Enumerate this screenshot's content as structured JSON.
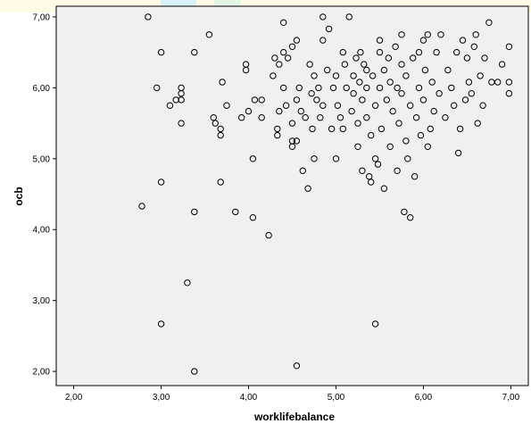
{
  "chart_data": {
    "type": "scatter",
    "title": "",
    "xlabel": "worklifebalance",
    "ylabel": "ocb",
    "xlim": [
      1.8,
      7.2
    ],
    "ylim": [
      1.8,
      7.15
    ],
    "xticks": [
      2.0,
      3.0,
      4.0,
      5.0,
      6.0,
      7.0
    ],
    "xtick_labels": [
      "2,00",
      "3,00",
      "4,00",
      "5,00",
      "6,00",
      "7,00"
    ],
    "yticks": [
      2.0,
      3.0,
      4.0,
      5.0,
      6.0,
      7.0
    ],
    "ytick_labels": [
      "2,00",
      "3,00",
      "4,00",
      "5,00",
      "6,00",
      "7,00"
    ],
    "grid": false,
    "colors": {
      "plot_bg": "#f0f0f0",
      "marker_stroke": "#000000",
      "marker_fill": "none"
    },
    "points": [
      [
        2.78,
        4.33
      ],
      [
        2.85,
        7.0
      ],
      [
        2.95,
        6.0
      ],
      [
        3.0,
        6.5
      ],
      [
        3.0,
        4.67
      ],
      [
        3.0,
        2.67
      ],
      [
        3.1,
        5.75
      ],
      [
        3.17,
        5.83
      ],
      [
        3.23,
        6.0
      ],
      [
        3.23,
        5.92
      ],
      [
        3.23,
        5.83
      ],
      [
        3.23,
        5.5
      ],
      [
        3.3,
        3.25
      ],
      [
        3.38,
        6.5
      ],
      [
        3.38,
        4.25
      ],
      [
        3.38,
        2.0
      ],
      [
        3.55,
        6.75
      ],
      [
        3.6,
        5.58
      ],
      [
        3.62,
        5.5
      ],
      [
        3.68,
        5.42
      ],
      [
        3.68,
        5.33
      ],
      [
        3.68,
        4.67
      ],
      [
        3.7,
        6.08
      ],
      [
        3.75,
        5.75
      ],
      [
        3.85,
        4.25
      ],
      [
        3.92,
        5.58
      ],
      [
        3.97,
        6.33
      ],
      [
        3.97,
        6.25
      ],
      [
        4.0,
        5.67
      ],
      [
        4.05,
        5.0
      ],
      [
        4.05,
        4.17
      ],
      [
        4.07,
        5.83
      ],
      [
        4.15,
        5.58
      ],
      [
        4.15,
        5.83
      ],
      [
        4.23,
        3.92
      ],
      [
        4.28,
        6.17
      ],
      [
        4.3,
        6.42
      ],
      [
        4.33,
        5.42
      ],
      [
        4.33,
        5.33
      ],
      [
        4.35,
        5.67
      ],
      [
        4.35,
        6.33
      ],
      [
        4.4,
        6.5
      ],
      [
        4.4,
        6.92
      ],
      [
        4.4,
        6.0
      ],
      [
        4.43,
        5.75
      ],
      [
        4.45,
        6.42
      ],
      [
        4.5,
        5.5
      ],
      [
        4.5,
        5.25
      ],
      [
        4.5,
        5.17
      ],
      [
        4.5,
        6.58
      ],
      [
        4.55,
        6.67
      ],
      [
        4.55,
        5.83
      ],
      [
        4.55,
        5.25
      ],
      [
        4.55,
        2.08
      ],
      [
        4.58,
        6.0
      ],
      [
        4.6,
        5.67
      ],
      [
        4.62,
        4.83
      ],
      [
        4.65,
        5.58
      ],
      [
        4.68,
        4.58
      ],
      [
        4.7,
        6.33
      ],
      [
        4.72,
        5.92
      ],
      [
        4.73,
        5.42
      ],
      [
        4.75,
        5.0
      ],
      [
        4.75,
        6.17
      ],
      [
        4.78,
        5.83
      ],
      [
        4.8,
        6.0
      ],
      [
        4.82,
        5.58
      ],
      [
        4.85,
        7.0
      ],
      [
        4.85,
        6.67
      ],
      [
        4.85,
        5.75
      ],
      [
        4.9,
        6.25
      ],
      [
        4.92,
        6.83
      ],
      [
        4.95,
        5.42
      ],
      [
        4.97,
        6.0
      ],
      [
        5.0,
        5.0
      ],
      [
        5.0,
        6.17
      ],
      [
        5.02,
        5.75
      ],
      [
        5.05,
        5.58
      ],
      [
        5.08,
        6.5
      ],
      [
        5.08,
        5.42
      ],
      [
        5.1,
        6.33
      ],
      [
        5.12,
        6.0
      ],
      [
        5.15,
        7.0
      ],
      [
        5.18,
        5.67
      ],
      [
        5.2,
        6.17
      ],
      [
        5.2,
        5.92
      ],
      [
        5.23,
        6.42
      ],
      [
        5.25,
        5.5
      ],
      [
        5.25,
        5.17
      ],
      [
        5.27,
        6.08
      ],
      [
        5.28,
        6.5
      ],
      [
        5.3,
        5.83
      ],
      [
        5.3,
        4.83
      ],
      [
        5.32,
        6.33
      ],
      [
        5.35,
        6.25
      ],
      [
        5.35,
        6.0
      ],
      [
        5.35,
        5.58
      ],
      [
        5.38,
        4.75
      ],
      [
        5.4,
        4.67
      ],
      [
        5.4,
        5.33
      ],
      [
        5.42,
        6.17
      ],
      [
        5.45,
        5.75
      ],
      [
        5.45,
        5.0
      ],
      [
        5.45,
        2.67
      ],
      [
        5.48,
        4.92
      ],
      [
        5.5,
        6.67
      ],
      [
        5.5,
        6.5
      ],
      [
        5.5,
        6.0
      ],
      [
        5.52,
        5.42
      ],
      [
        5.55,
        4.58
      ],
      [
        5.55,
        6.25
      ],
      [
        5.58,
        5.83
      ],
      [
        5.6,
        6.42
      ],
      [
        5.62,
        5.17
      ],
      [
        5.62,
        6.08
      ],
      [
        5.65,
        5.67
      ],
      [
        5.68,
        6.58
      ],
      [
        5.7,
        6.0
      ],
      [
        5.7,
        4.83
      ],
      [
        5.72,
        5.5
      ],
      [
        5.75,
        6.33
      ],
      [
        5.75,
        5.92
      ],
      [
        5.75,
        6.75
      ],
      [
        5.78,
        4.25
      ],
      [
        5.8,
        5.25
      ],
      [
        5.8,
        6.17
      ],
      [
        5.82,
        5.0
      ],
      [
        5.85,
        4.17
      ],
      [
        5.85,
        5.75
      ],
      [
        5.88,
        6.42
      ],
      [
        5.9,
        4.75
      ],
      [
        5.92,
        5.58
      ],
      [
        5.95,
        6.0
      ],
      [
        5.95,
        6.5
      ],
      [
        5.97,
        5.33
      ],
      [
        6.0,
        6.67
      ],
      [
        6.0,
        5.83
      ],
      [
        6.02,
        6.25
      ],
      [
        6.05,
        6.75
      ],
      [
        6.05,
        5.17
      ],
      [
        6.08,
        5.42
      ],
      [
        6.1,
        6.08
      ],
      [
        6.12,
        5.67
      ],
      [
        6.15,
        6.5
      ],
      [
        6.18,
        5.92
      ],
      [
        6.2,
        6.75
      ],
      [
        6.25,
        5.58
      ],
      [
        6.28,
        6.25
      ],
      [
        6.32,
        6.0
      ],
      [
        6.35,
        5.75
      ],
      [
        6.38,
        6.5
      ],
      [
        6.4,
        5.08
      ],
      [
        6.42,
        5.42
      ],
      [
        6.45,
        6.67
      ],
      [
        6.48,
        5.83
      ],
      [
        6.5,
        6.42
      ],
      [
        6.52,
        6.08
      ],
      [
        6.55,
        5.92
      ],
      [
        6.58,
        6.58
      ],
      [
        6.6,
        6.75
      ],
      [
        6.62,
        5.5
      ],
      [
        6.65,
        6.17
      ],
      [
        6.68,
        5.75
      ],
      [
        6.7,
        6.42
      ],
      [
        6.75,
        6.92
      ],
      [
        6.78,
        6.08
      ],
      [
        6.85,
        6.08
      ],
      [
        6.9,
        6.33
      ],
      [
        6.98,
        6.58
      ],
      [
        6.98,
        6.08
      ],
      [
        6.98,
        5.92
      ]
    ]
  }
}
